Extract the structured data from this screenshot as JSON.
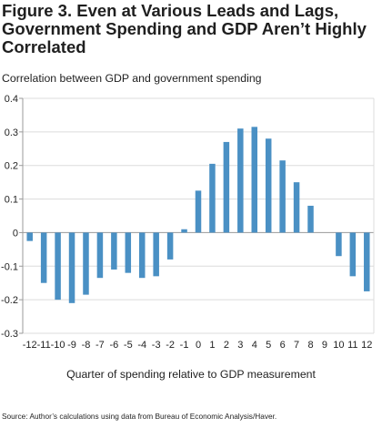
{
  "title": "Figure 3. Even at Various Leads and Lags, Government Spending and GDP Aren’t Highly Correlated",
  "ylabel": "Correlation between GDP and government spending",
  "xlabel": "Quarter of spending relative to GDP measurement",
  "source": "Source: Author’s calculations using data from Bureau of Economic Analysis/Haver.",
  "colors": {
    "bar": "#4a90c4",
    "axis": "#9a9a9a",
    "grid": "#dcdcdc"
  },
  "chart_data": {
    "type": "bar",
    "title": "Figure 3. Even at Various Leads and Lags, Government Spending and GDP Aren’t Highly Correlated",
    "xlabel": "Quarter of spending relative to GDP measurement",
    "ylabel": "Correlation between GDP and government spending",
    "ylim": [
      -0.3,
      0.4
    ],
    "yticks": [
      0.4,
      0.3,
      0.2,
      0.1,
      0,
      -0.1,
      -0.2,
      -0.3
    ],
    "ytick_labels": [
      "0.4",
      "0.3",
      "0.2",
      "0.1",
      "0",
      "-0.1",
      "-0.2",
      "-0.3"
    ],
    "grid": true,
    "categories": [
      "-12",
      "-11",
      "-10",
      "-9",
      "-8",
      "-7",
      "-6",
      "-5",
      "-4",
      "-3",
      "-2",
      "-1",
      "0",
      "1",
      "2",
      "3",
      "4",
      "5",
      "6",
      "7",
      "8",
      "9",
      "10",
      "11",
      "12"
    ],
    "values": [
      -0.025,
      -0.15,
      -0.2,
      -0.21,
      -0.185,
      -0.135,
      -0.11,
      -0.12,
      -0.135,
      -0.13,
      -0.08,
      0.01,
      0.125,
      0.205,
      0.27,
      0.31,
      0.315,
      0.28,
      0.215,
      0.15,
      0.08,
      0.0,
      -0.07,
      -0.13,
      -0.175
    ]
  }
}
